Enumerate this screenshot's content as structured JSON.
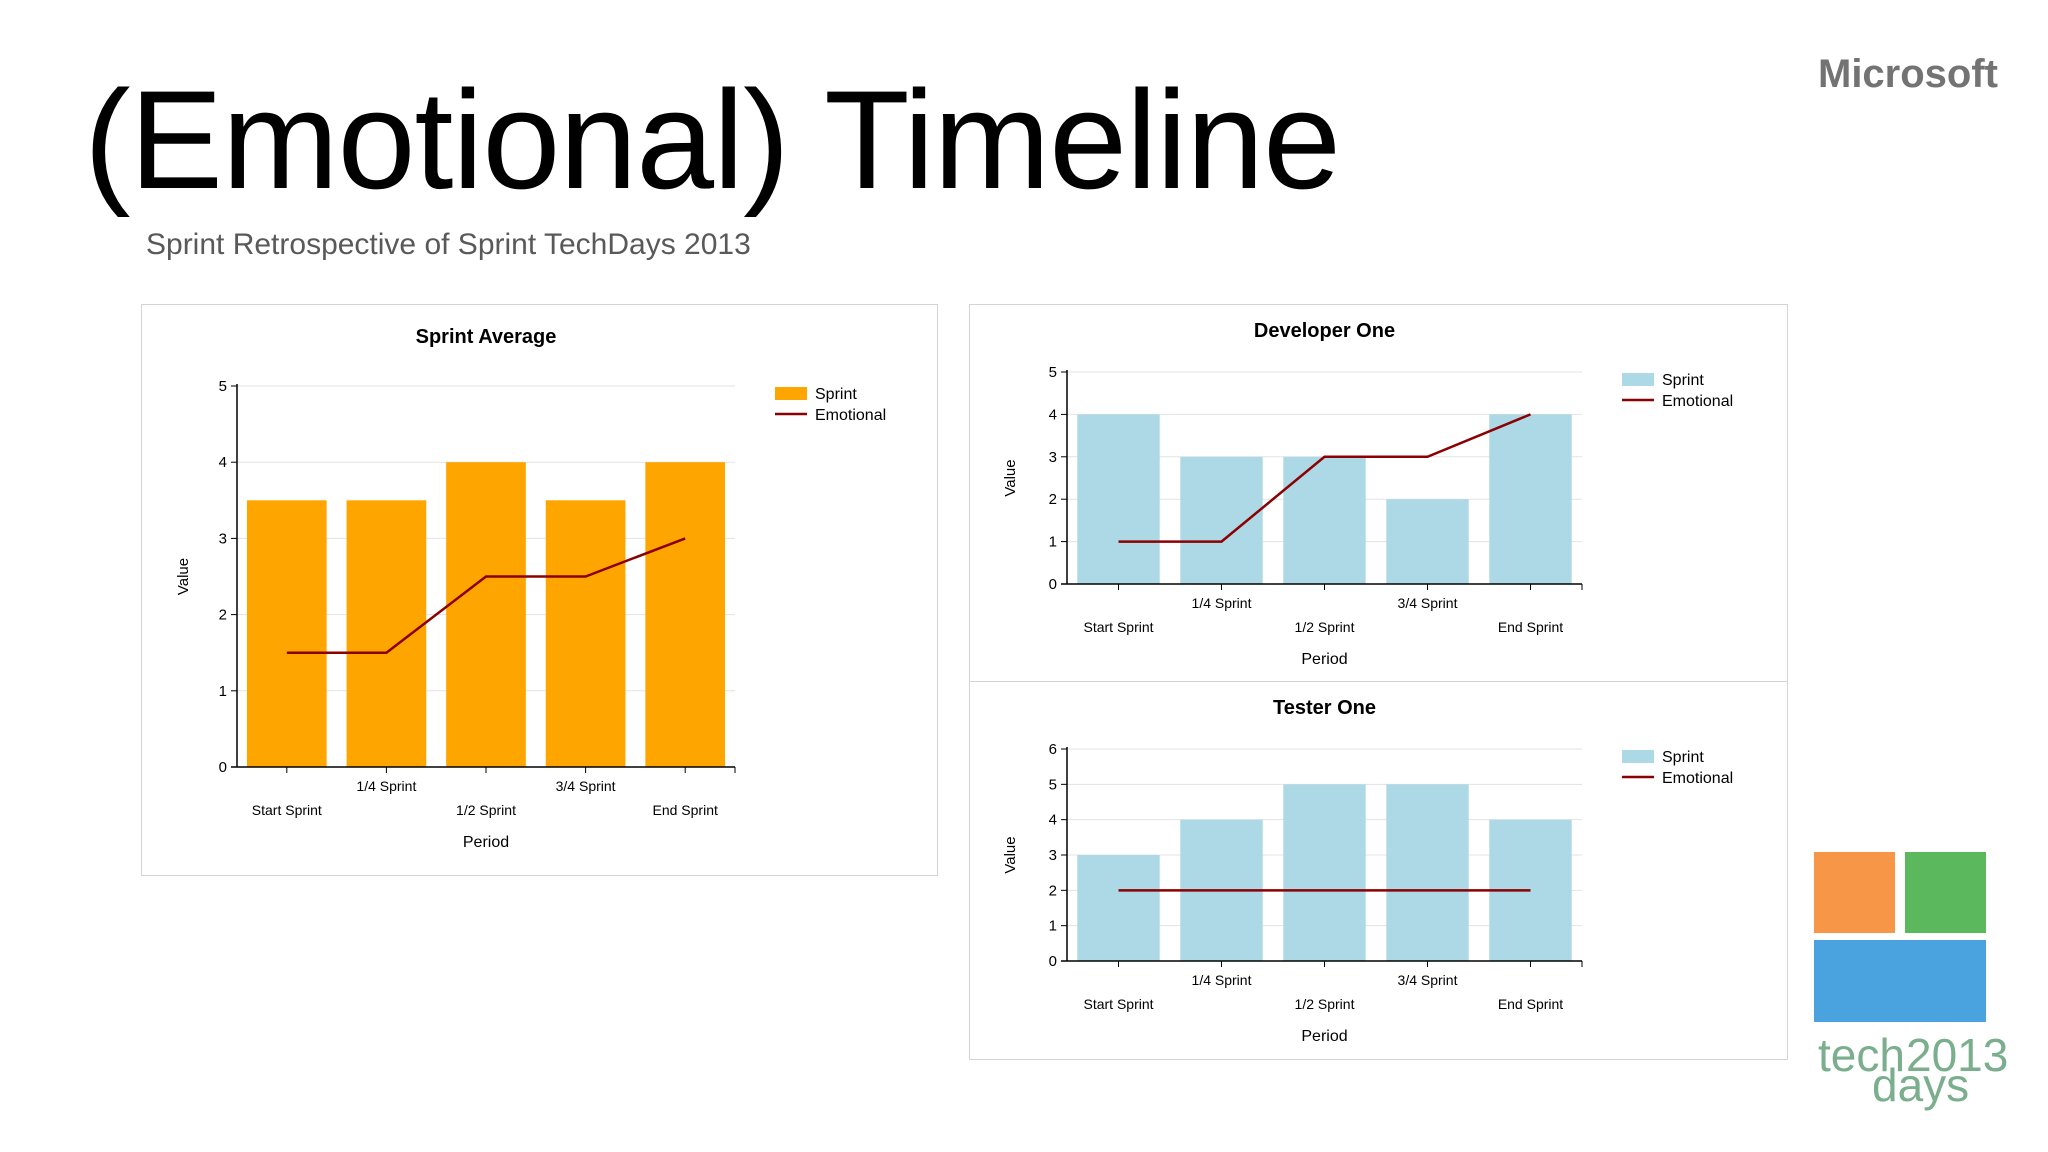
{
  "slide": {
    "title": "(Emotional) Timeline",
    "subtitle": "Sprint Retrospective of Sprint TechDays 2013",
    "brand": "Microsoft",
    "logo": {
      "word_tech": "tech",
      "word_year": "2013",
      "word_days": "days",
      "tile_colors": [
        "#f79646",
        "#5cb85c",
        "#4aa3df"
      ]
    }
  },
  "chart_data": [
    {
      "type": "bar",
      "title": "Sprint Average",
      "xlabel": "Period",
      "ylabel": "Value",
      "categories": [
        "Start Sprint",
        "1/4 Sprint",
        "1/2 Sprint",
        "3/4 Sprint",
        "End Sprint"
      ],
      "ylim": [
        0,
        5
      ],
      "yticks": [
        0,
        1,
        2,
        3,
        4,
        5
      ],
      "grid": true,
      "legend_position": "top-right",
      "series": [
        {
          "name": "Sprint",
          "type": "bar",
          "color": "#ffa500",
          "values": [
            3.5,
            3.5,
            4,
            3.5,
            4
          ]
        },
        {
          "name": "Emotional",
          "type": "line",
          "color": "#8b0000",
          "values": [
            1.5,
            1.5,
            2.5,
            2.5,
            3
          ]
        }
      ]
    },
    {
      "type": "bar",
      "title": "Developer One",
      "xlabel": "Period",
      "ylabel": "Value",
      "categories": [
        "Start Sprint",
        "1/4 Sprint",
        "1/2 Sprint",
        "3/4 Sprint",
        "End Sprint"
      ],
      "ylim": [
        0,
        5
      ],
      "yticks": [
        0,
        1,
        2,
        3,
        4,
        5
      ],
      "grid": true,
      "legend_position": "top-right",
      "series": [
        {
          "name": "Sprint",
          "type": "bar",
          "color": "#add8e6",
          "values": [
            4,
            3,
            3,
            2,
            4
          ]
        },
        {
          "name": "Emotional",
          "type": "line",
          "color": "#8b0000",
          "values": [
            1,
            1,
            3,
            3,
            4
          ]
        }
      ]
    },
    {
      "type": "bar",
      "title": "Tester One",
      "xlabel": "Period",
      "ylabel": "Value",
      "categories": [
        "Start Sprint",
        "1/4 Sprint",
        "1/2 Sprint",
        "3/4 Sprint",
        "End Sprint"
      ],
      "ylim": [
        0,
        6
      ],
      "yticks": [
        0,
        1,
        2,
        3,
        4,
        5,
        6
      ],
      "grid": true,
      "legend_position": "top-right",
      "series": [
        {
          "name": "Sprint",
          "type": "bar",
          "color": "#add8e6",
          "values": [
            3,
            4,
            5,
            5,
            4
          ]
        },
        {
          "name": "Emotional",
          "type": "line",
          "color": "#8b0000",
          "values": [
            2,
            2,
            2,
            2,
            2
          ]
        }
      ]
    }
  ]
}
